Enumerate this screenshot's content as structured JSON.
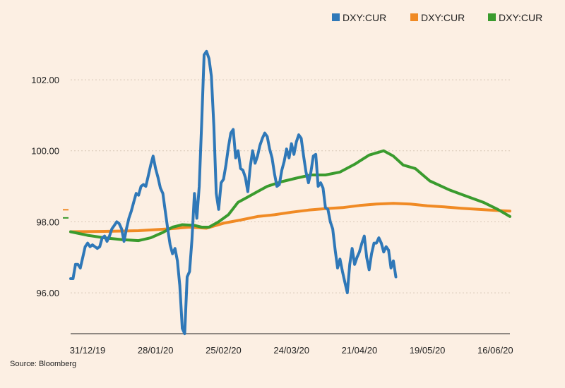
{
  "source": "Source: Bloomberg",
  "chart_data": {
    "type": "line",
    "title": "",
    "xlabel": "",
    "ylabel": "",
    "ylim": [
      94.85,
      103.65
    ],
    "xlim": [
      "2019-12-31",
      "2020-06-29"
    ],
    "yticks": [
      "96.00",
      "98.00",
      "100.00",
      "102.00"
    ],
    "ytick_values": [
      96,
      98,
      100,
      102
    ],
    "xticks": [
      "31/12/19",
      "28/01/20",
      "25/02/20",
      "24/03/20",
      "21/04/20",
      "19/05/20",
      "16/06/20"
    ],
    "xtick_dates": [
      "2019-12-31",
      "2020-01-28",
      "2020-02-25",
      "2020-03-24",
      "2020-04-21",
      "2020-05-19",
      "2020-06-16"
    ],
    "grid": "horizontal dotted",
    "legend_position": "top-right",
    "last_value_markers": [
      98.3,
      98.15
    ],
    "series": [
      {
        "name": "DXY:CUR",
        "color": "#2f78b8",
        "points": [
          [
            "2019-12-31",
            96.4
          ],
          [
            "2020-01-01",
            96.4
          ],
          [
            "2020-01-02",
            96.8
          ],
          [
            "2020-01-03",
            96.8
          ],
          [
            "2020-01-04",
            96.7
          ],
          [
            "2020-01-05",
            97.0
          ],
          [
            "2020-01-06",
            97.3
          ],
          [
            "2020-01-07",
            97.4
          ],
          [
            "2020-01-08",
            97.3
          ],
          [
            "2020-01-09",
            97.35
          ],
          [
            "2020-01-10",
            97.3
          ],
          [
            "2020-01-11",
            97.25
          ],
          [
            "2020-01-12",
            97.3
          ],
          [
            "2020-01-13",
            97.55
          ],
          [
            "2020-01-14",
            97.6
          ],
          [
            "2020-01-15",
            97.45
          ],
          [
            "2020-01-16",
            97.6
          ],
          [
            "2020-01-17",
            97.8
          ],
          [
            "2020-01-18",
            97.9
          ],
          [
            "2020-01-19",
            98.0
          ],
          [
            "2020-01-20",
            97.95
          ],
          [
            "2020-01-21",
            97.8
          ],
          [
            "2020-01-22",
            97.45
          ],
          [
            "2020-01-23",
            97.8
          ],
          [
            "2020-01-24",
            98.1
          ],
          [
            "2020-01-25",
            98.3
          ],
          [
            "2020-01-26",
            98.55
          ],
          [
            "2020-01-27",
            98.8
          ],
          [
            "2020-01-28",
            98.75
          ],
          [
            "2020-01-29",
            99.0
          ],
          [
            "2020-01-30",
            99.05
          ],
          [
            "2020-01-31",
            99.0
          ],
          [
            "2020-02-01",
            99.3
          ],
          [
            "2020-02-02",
            99.6
          ],
          [
            "2020-02-03",
            99.85
          ],
          [
            "2020-02-04",
            99.5
          ],
          [
            "2020-02-05",
            99.25
          ],
          [
            "2020-02-06",
            98.95
          ],
          [
            "2020-02-07",
            98.8
          ],
          [
            "2020-02-08",
            98.3
          ],
          [
            "2020-02-09",
            97.8
          ],
          [
            "2020-02-10",
            97.35
          ],
          [
            "2020-02-11",
            97.1
          ],
          [
            "2020-02-12",
            97.25
          ],
          [
            "2020-02-13",
            96.9
          ],
          [
            "2020-02-14",
            96.2
          ],
          [
            "2020-02-15",
            95.0
          ],
          [
            "2020-02-16",
            94.85
          ],
          [
            "2020-02-17",
            96.45
          ],
          [
            "2020-02-18",
            96.6
          ],
          [
            "2020-02-19",
            97.5
          ],
          [
            "2020-02-20",
            98.8
          ],
          [
            "2020-02-21",
            98.1
          ],
          [
            "2020-02-22",
            99.0
          ],
          [
            "2020-02-23",
            100.8
          ],
          [
            "2020-02-24",
            102.7
          ],
          [
            "2020-02-25",
            102.8
          ],
          [
            "2020-02-26",
            102.6
          ],
          [
            "2020-02-27",
            102.1
          ],
          [
            "2020-02-28",
            100.7
          ],
          [
            "2020-02-29",
            98.8
          ],
          [
            "2020-03-01",
            98.35
          ],
          [
            "2020-03-02",
            99.1
          ],
          [
            "2020-03-03",
            99.2
          ],
          [
            "2020-03-04",
            99.6
          ],
          [
            "2020-03-05",
            100.1
          ],
          [
            "2020-03-06",
            100.5
          ],
          [
            "2020-03-07",
            100.6
          ],
          [
            "2020-03-08",
            99.8
          ],
          [
            "2020-03-09",
            100.0
          ],
          [
            "2020-03-10",
            99.5
          ],
          [
            "2020-03-11",
            99.45
          ],
          [
            "2020-03-12",
            99.25
          ],
          [
            "2020-03-13",
            98.85
          ],
          [
            "2020-03-14",
            99.55
          ],
          [
            "2020-03-15",
            100.0
          ],
          [
            "2020-03-16",
            99.65
          ],
          [
            "2020-03-17",
            99.85
          ],
          [
            "2020-03-18",
            100.15
          ],
          [
            "2020-03-19",
            100.35
          ],
          [
            "2020-03-20",
            100.5
          ],
          [
            "2020-03-21",
            100.4
          ],
          [
            "2020-03-22",
            100.05
          ],
          [
            "2020-03-23",
            99.8
          ],
          [
            "2020-03-24",
            99.35
          ],
          [
            "2020-03-25",
            99.0
          ],
          [
            "2020-03-26",
            99.05
          ],
          [
            "2020-03-27",
            99.45
          ],
          [
            "2020-03-28",
            99.7
          ],
          [
            "2020-03-29",
            100.05
          ],
          [
            "2020-03-30",
            99.8
          ],
          [
            "2020-03-31",
            100.2
          ],
          [
            "2020-04-01",
            99.9
          ],
          [
            "2020-04-02",
            100.25
          ],
          [
            "2020-04-03",
            100.45
          ],
          [
            "2020-04-04",
            100.35
          ],
          [
            "2020-04-05",
            99.85
          ],
          [
            "2020-04-06",
            99.4
          ],
          [
            "2020-04-07",
            99.1
          ],
          [
            "2020-04-08",
            99.4
          ],
          [
            "2020-04-09",
            99.85
          ],
          [
            "2020-04-10",
            99.9
          ],
          [
            "2020-04-11",
            99.0
          ],
          [
            "2020-04-12",
            99.1
          ],
          [
            "2020-04-13",
            98.95
          ],
          [
            "2020-04-14",
            98.4
          ],
          [
            "2020-04-15",
            98.35
          ],
          [
            "2020-04-16",
            98.0
          ],
          [
            "2020-04-17",
            97.8
          ],
          [
            "2020-04-18",
            97.2
          ],
          [
            "2020-04-19",
            96.7
          ],
          [
            "2020-04-20",
            96.95
          ],
          [
            "2020-04-21",
            96.6
          ],
          [
            "2020-04-22",
            96.3
          ],
          [
            "2020-04-23",
            96.0
          ],
          [
            "2020-04-24",
            96.8
          ],
          [
            "2020-04-25",
            97.25
          ],
          [
            "2020-04-26",
            96.8
          ],
          [
            "2020-04-27",
            97.0
          ],
          [
            "2020-04-28",
            97.15
          ],
          [
            "2020-04-29",
            97.4
          ],
          [
            "2020-04-30",
            97.6
          ],
          [
            "2020-05-01",
            97.0
          ],
          [
            "2020-05-02",
            96.65
          ],
          [
            "2020-05-03",
            97.1
          ],
          [
            "2020-05-04",
            97.4
          ],
          [
            "2020-05-05",
            97.4
          ],
          [
            "2020-05-06",
            97.55
          ],
          [
            "2020-05-07",
            97.4
          ],
          [
            "2020-05-08",
            97.15
          ],
          [
            "2020-05-09",
            97.3
          ],
          [
            "2020-05-10",
            97.2
          ],
          [
            "2020-05-11",
            96.7
          ],
          [
            "2020-05-12",
            96.9
          ],
          [
            "2020-05-13",
            96.45
          ]
        ]
      },
      {
        "name": "DXY:CUR",
        "color": "#f08a24",
        "points": [
          [
            "2019-12-31",
            97.72
          ],
          [
            "2020-01-14",
            97.73
          ],
          [
            "2020-01-28",
            97.75
          ],
          [
            "2020-02-09",
            97.8
          ],
          [
            "2020-02-18",
            97.85
          ],
          [
            "2020-02-25",
            97.82
          ],
          [
            "2020-03-03",
            97.96
          ],
          [
            "2020-03-10",
            98.05
          ],
          [
            "2020-03-17",
            98.15
          ],
          [
            "2020-03-24",
            98.2
          ],
          [
            "2020-03-31",
            98.27
          ],
          [
            "2020-04-07",
            98.33
          ],
          [
            "2020-04-14",
            98.37
          ],
          [
            "2020-04-21",
            98.4
          ],
          [
            "2020-04-28",
            98.46
          ],
          [
            "2020-05-05",
            98.5
          ],
          [
            "2020-05-12",
            98.52
          ],
          [
            "2020-05-19",
            98.5
          ],
          [
            "2020-05-26",
            98.45
          ],
          [
            "2020-06-02",
            98.42
          ],
          [
            "2020-06-09",
            98.38
          ],
          [
            "2020-06-16",
            98.35
          ],
          [
            "2020-06-23",
            98.32
          ],
          [
            "2020-06-29",
            98.3
          ]
        ]
      },
      {
        "name": "DXY:CUR",
        "color": "#3a9b2e",
        "points": [
          [
            "2019-12-31",
            97.72
          ],
          [
            "2020-01-07",
            97.62
          ],
          [
            "2020-01-14",
            97.55
          ],
          [
            "2020-01-21",
            97.5
          ],
          [
            "2020-01-28",
            97.47
          ],
          [
            "2020-02-02",
            97.55
          ],
          [
            "2020-02-07",
            97.7
          ],
          [
            "2020-02-11",
            97.85
          ],
          [
            "2020-02-15",
            97.92
          ],
          [
            "2020-02-20",
            97.9
          ],
          [
            "2020-02-23",
            97.85
          ],
          [
            "2020-02-26",
            97.85
          ],
          [
            "2020-03-01",
            98.0
          ],
          [
            "2020-03-05",
            98.2
          ],
          [
            "2020-03-09",
            98.55
          ],
          [
            "2020-03-13",
            98.7
          ],
          [
            "2020-03-17",
            98.85
          ],
          [
            "2020-03-21",
            99.0
          ],
          [
            "2020-03-27",
            99.13
          ],
          [
            "2020-04-02",
            99.23
          ],
          [
            "2020-04-08",
            99.32
          ],
          [
            "2020-04-14",
            99.32
          ],
          [
            "2020-04-20",
            99.4
          ],
          [
            "2020-04-26",
            99.62
          ],
          [
            "2020-05-02",
            99.88
          ],
          [
            "2020-05-08",
            100.0
          ],
          [
            "2020-05-12",
            99.85
          ],
          [
            "2020-05-16",
            99.6
          ],
          [
            "2020-05-21",
            99.5
          ],
          [
            "2020-05-27",
            99.15
          ],
          [
            "2020-06-04",
            98.9
          ],
          [
            "2020-06-10",
            98.75
          ],
          [
            "2020-06-18",
            98.55
          ],
          [
            "2020-06-24",
            98.35
          ],
          [
            "2020-06-29",
            98.15
          ]
        ]
      }
    ]
  }
}
